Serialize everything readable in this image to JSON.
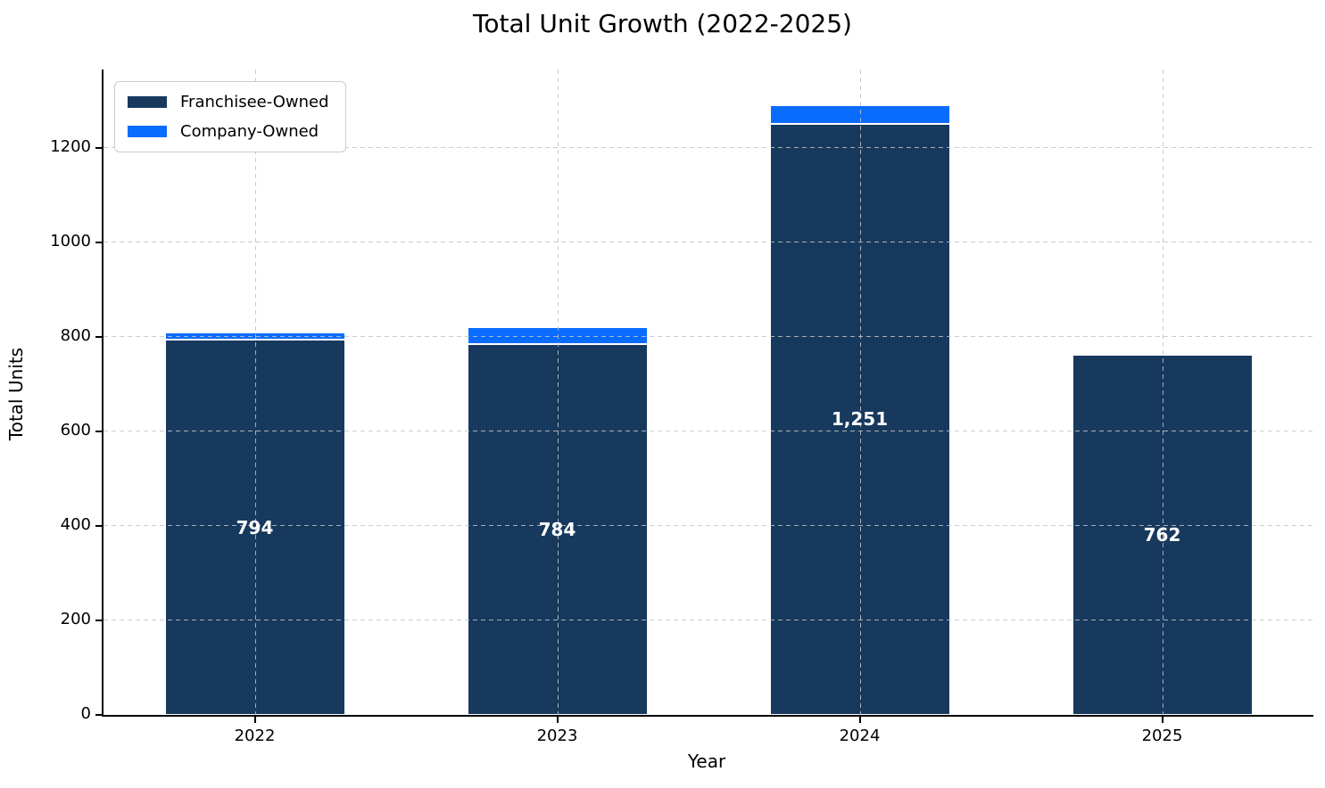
{
  "chart_data": {
    "type": "bar",
    "stacked": true,
    "title": "Total Unit Growth (2022-2025)",
    "xlabel": "Year",
    "ylabel": "Total Units",
    "categories": [
      "2022",
      "2023",
      "2024",
      "2025"
    ],
    "series": [
      {
        "name": "Franchisee-Owned",
        "color": "#17395e",
        "values": [
          794,
          784,
          1251,
          762
        ],
        "value_labels": [
          "794",
          "784",
          "1,251",
          "762"
        ],
        "value_label_color": "#ffffff"
      },
      {
        "name": "Company-Owned",
        "color": "#0a6cff",
        "values": [
          15,
          37,
          40,
          5
        ]
      }
    ],
    "totals_estimated": [
      809,
      821,
      1291,
      767
    ],
    "yticks": [
      0,
      200,
      400,
      600,
      800,
      1000,
      1200
    ],
    "ylim": [
      0,
      1366
    ],
    "grid": {
      "visible": true,
      "style": "dashed",
      "over_bars": true
    },
    "legend_position": "upper-left",
    "bar_edge_color": "#ffffff"
  },
  "legend": {
    "items": [
      {
        "label": "Franchisee-Owned",
        "color": "#17395e"
      },
      {
        "label": "Company-Owned",
        "color": "#0a6cff"
      }
    ]
  }
}
